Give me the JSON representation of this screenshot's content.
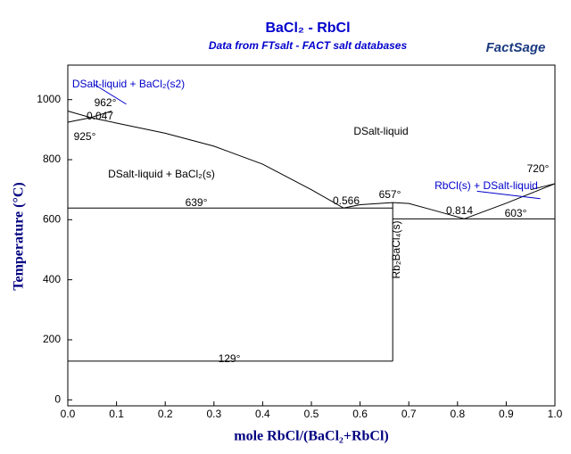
{
  "chart_data": {
    "type": "line",
    "title": "BaCl₂ - RbCl",
    "subtitle": "Data from FTsalt - FACT salt databases",
    "logo": "FactSage",
    "x_label": "mole RbCl/(BaCl₂+RbCl)",
    "y_label": "Temperature (°C)",
    "xlim": [
      0,
      1
    ],
    "ylim": [
      -20,
      1115
    ],
    "xticks": [
      {
        "value": 0,
        "label": "0.0"
      },
      0.1,
      0.2,
      0.3,
      0.4,
      0.5,
      0.6,
      0.7,
      0.8,
      0.9,
      {
        "value": 1,
        "label": "1.0"
      }
    ],
    "yticks": [
      0,
      200,
      400,
      600,
      800,
      1000
    ],
    "series": [
      {
        "color": "#000000",
        "x": [
          0,
          0.047,
          0.1,
          0.2,
          0.3,
          0.4,
          0.5,
          0.566
        ],
        "values": [
          962,
          940,
          922,
          888,
          845,
          785,
          700,
          639
        ]
      },
      {
        "color": "#000000",
        "x": [
          0,
          0.047,
          0.09
        ],
        "values": [
          925,
          940,
          962
        ]
      },
      {
        "color": "#000000",
        "x": [
          0,
          0.667
        ],
        "values": [
          639,
          639
        ]
      },
      {
        "color": "#000000",
        "x": [
          0.566,
          0.6,
          0.667,
          0.7,
          0.75,
          0.814
        ],
        "values": [
          639,
          650,
          657,
          654,
          632,
          603
        ]
      },
      {
        "color": "#000000",
        "x": [
          0.667,
          0.667
        ],
        "values": [
          129,
          657
        ]
      },
      {
        "color": "#000000",
        "x": [
          0.667,
          1
        ],
        "values": [
          603,
          603
        ]
      },
      {
        "color": "#000000",
        "x": [
          0.814,
          0.9,
          1
        ],
        "values": [
          603,
          655,
          720
        ]
      },
      {
        "color": "#000000",
        "x": [
          0.95,
          1
        ],
        "values": [
          700,
          720
        ]
      },
      {
        "color": "#000000",
        "x": [
          0,
          0.667
        ],
        "values": [
          129,
          129
        ]
      },
      {
        "color": "#0000cc",
        "x": [
          0.84,
          0.97
        ],
        "values": [
          695,
          670
        ]
      },
      {
        "color": "#0000cc",
        "x": [
          0.055,
          0.12
        ],
        "values": [
          1050,
          985
        ]
      }
    ],
    "annotations": [
      "962°",
      "0.047",
      "925°",
      "DSalt-liquid",
      "DSalt-liquid + BaCl₂(s2)",
      "DSalt-liquid + BaCl₂(s)",
      "639°",
      "0.566",
      "657°",
      "0.814",
      "603°",
      "720°",
      "RbCl(s) + DSalt-liquid",
      "Rb₂BaCl₄(s)",
      "129°"
    ]
  }
}
